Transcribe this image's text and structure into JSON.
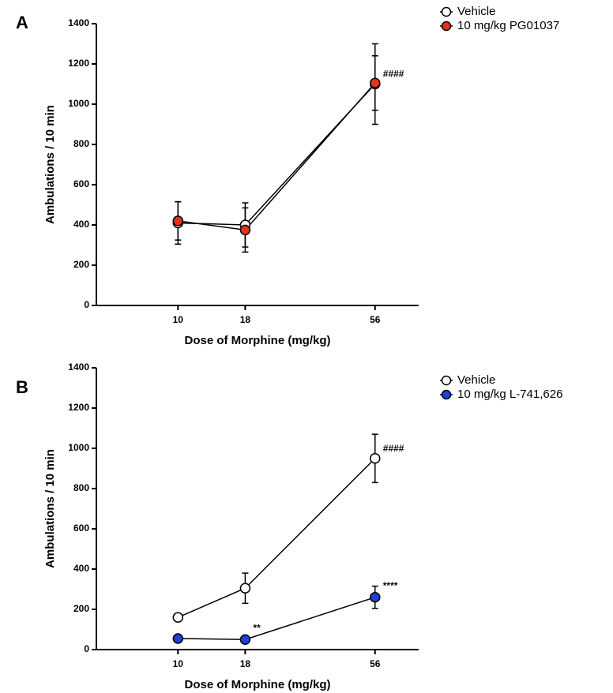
{
  "chart_data": [
    {
      "type": "line",
      "panel_label": "A",
      "xlabel": "Dose of Morphine (mg/kg)",
      "ylabel": "Ambulations / 10 min",
      "x": [
        10,
        18,
        56
      ],
      "xscale": "log",
      "xlim": [
        4.9,
        82
      ],
      "xticks": [
        10,
        18,
        56
      ],
      "ylim": [
        0,
        1400
      ],
      "yticks": [
        0,
        200,
        400,
        600,
        800,
        1000,
        1200,
        1400
      ],
      "series": [
        {
          "name": "Vehicle",
          "color": "#ffffff",
          "values": [
            410,
            400,
            1100
          ],
          "errors": [
            105,
            110,
            200
          ],
          "labels": [
            null,
            null,
            "####"
          ]
        },
        {
          "name": "10 mg/kg PG01037",
          "color": "#e8321e",
          "values": [
            420,
            375,
            1105
          ],
          "errors": [
            95,
            110,
            135
          ],
          "labels": [
            null,
            null,
            null
          ]
        }
      ]
    },
    {
      "type": "line",
      "panel_label": "B",
      "xlabel": "Dose of Morphine (mg/kg)",
      "ylabel": "Ambulations / 10 min",
      "x": [
        10,
        18,
        56
      ],
      "xscale": "log",
      "xlim": [
        4.9,
        82
      ],
      "xticks": [
        10,
        18,
        56
      ],
      "ylim": [
        0,
        1400
      ],
      "yticks": [
        0,
        200,
        400,
        600,
        800,
        1000,
        1200,
        1400
      ],
      "series": [
        {
          "name": "Vehicle",
          "color": "#ffffff",
          "values": [
            160,
            305,
            950
          ],
          "errors": [
            15,
            75,
            120
          ],
          "labels": [
            null,
            null,
            "####"
          ]
        },
        {
          "name": "10 mg/kg L-741,626",
          "color": "#1f3fd6",
          "values": [
            55,
            50,
            260
          ],
          "errors": [
            5,
            5,
            55
          ],
          "labels": [
            null,
            "**",
            "****"
          ]
        }
      ]
    }
  ]
}
